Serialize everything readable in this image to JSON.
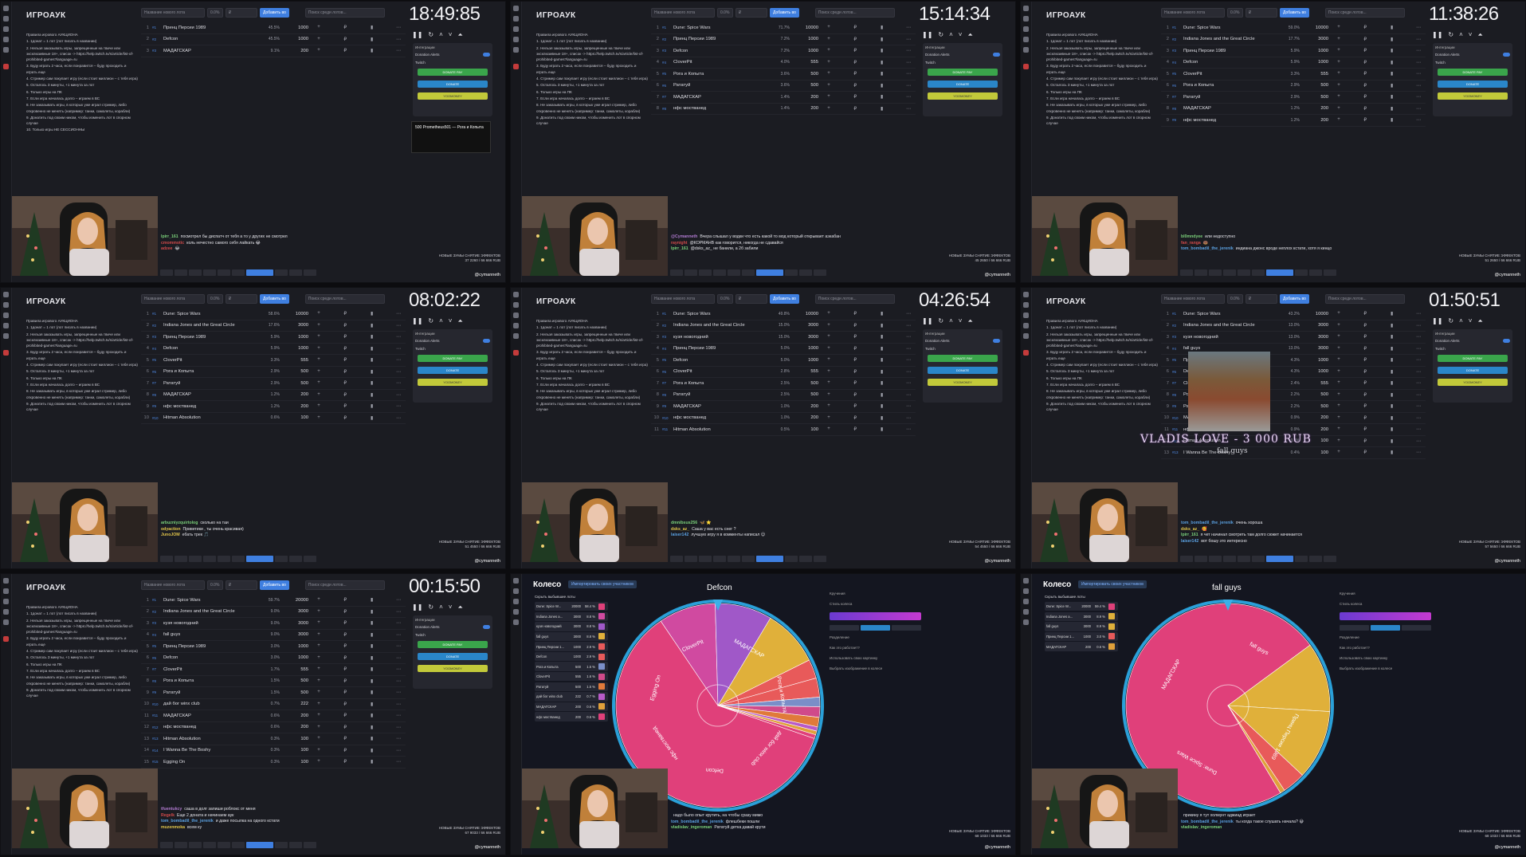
{
  "app_title": "ИГРОАУК",
  "toolbar": {
    "new_lot_placeholder": "Название нового лота",
    "percent": "0.0%",
    "amount_placeholder": "₽",
    "add_label": "Добавить во",
    "search_placeholder": "Поиск среди лотов..."
  },
  "rules": [
    "Правила игрового АУКЦИОНА",
    "1. 1донат = 1 лот (лот писать в названии)",
    "2. Нельзя заказывать игры, запрещенные на твиче или эксклюзивные 18+, список -> https://help.twitch.tv/s/article/list-of-prohibited-games?language=ru",
    "3. Буду играть 2 часа, если понравится – буду проходить и играть еще",
    "4. Стример сам покупает игру (если стоит миллион – с тебя игра)",
    "5. Осталось 3 минуты, +1 минута за лот",
    "6. Только игры на ПК",
    "7. Если игра началась долго – играем в ВС",
    "8. Не заказывать игры, в которых уже играл стример, либо откровенно не менять (например: танки, самолеты, корабли)",
    "9. Донатить под своим ником, чтобы изменить лот в спорном случае"
  ],
  "rules_extra": "10. Только игры НЕ СЕССИОННЫ",
  "integrations": {
    "header": "Интеграции",
    "donation_alerts": "Donation Alerts",
    "twitch": "Twitch",
    "btn_donate_pay": "DONATE PAY",
    "btn_donate": "DONATE",
    "btn_yoomoney": "YOOMONEY"
  },
  "channel": "@cymanneth",
  "info_line": "НОВЫЕ ЗУМЫ СНЯТИЕ ЭФФЕКТОВ",
  "frames": [
    {
      "timer": "18:49:85",
      "lots": [
        {
          "name": "Принц Персии 1989",
          "pct": "45.5%",
          "amount": "1000"
        },
        {
          "name": "Defcon",
          "pct": "45.5%",
          "amount": "1000"
        },
        {
          "name": "МАДАГСКАР",
          "pct": "9.1%",
          "amount": "200"
        }
      ],
      "popup": "500 Prometheus501 — Рога и Копыта",
      "chat": [
        {
          "user": "lpirr_161",
          "color": "#7ad07a",
          "msg": "посмотрел бы диспатч от тебя а то у других не смотрел"
        },
        {
          "user": "cmommotic",
          "color": "#d04a4a",
          "msg": "коль нечестно самого себя лайкать 😂"
        },
        {
          "user": "adzee",
          "color": "#d04a4a",
          "msg": "😂"
        }
      ],
      "total": "37 2260 / 66 666 RUB"
    },
    {
      "timer": "15:14:34",
      "lots": [
        {
          "name": "Dune: Spice Wars",
          "pct": "71.7%",
          "amount": "10000"
        },
        {
          "name": "Принц Персии 1989",
          "pct": "7.2%",
          "amount": "1000"
        },
        {
          "name": "Defcon",
          "pct": "7.2%",
          "amount": "1000"
        },
        {
          "name": "CloverPit",
          "pct": "4.0%",
          "amount": "555"
        },
        {
          "name": "Рога и Копыта",
          "pct": "3.6%",
          "amount": "500"
        },
        {
          "name": "Рататуй",
          "pct": "3.6%",
          "amount": "500"
        },
        {
          "name": "МАДАГСКАР",
          "pct": "1.4%",
          "amount": "200"
        },
        {
          "name": "нфс мостванед",
          "pct": "1.4%",
          "amount": "200"
        }
      ],
      "chat": [
        {
          "user": "@Cymanneth",
          "color": "#b07ad0",
          "msg": "Вчера слышал у водки что есть какой то мод который открывает аэкабан"
        },
        {
          "user": "raynight",
          "color": "#d04a4a",
          "msg": "@КОРМАНВ как говорится, никогда не сдавайся"
        },
        {
          "user": "lpirr_161",
          "color": "#7ad07a",
          "msg": "@dsks_az_ не банили, а 2б забили"
        }
      ],
      "total": "45 2650 / 66 666 RUB"
    },
    {
      "timer": "11:38:26",
      "lots": [
        {
          "name": "Dune: Spice Wars",
          "pct": "59.0%",
          "amount": "10000"
        },
        {
          "name": "Indiana Jones and the Great Circle",
          "pct": "17.7%",
          "amount": "3000"
        },
        {
          "name": "Принц Персии 1989",
          "pct": "5.9%",
          "amount": "1000"
        },
        {
          "name": "Defcon",
          "pct": "5.9%",
          "amount": "1000"
        },
        {
          "name": "CloverPit",
          "pct": "3.3%",
          "amount": "555"
        },
        {
          "name": "Рога и Копыта",
          "pct": "2.9%",
          "amount": "500"
        },
        {
          "name": "Рататуй",
          "pct": "2.9%",
          "amount": "500"
        },
        {
          "name": "МАДАГСКАР",
          "pct": "1.2%",
          "amount": "200"
        },
        {
          "name": "нфс мостванед",
          "pct": "1.2%",
          "amount": "200"
        }
      ],
      "chat": [
        {
          "user": "bl0mndyee",
          "color": "#7ad07a",
          "msg": "или недоступно"
        },
        {
          "user": "fan_ranga",
          "color": "#d04a4a",
          "msg": "🍩"
        },
        {
          "user": "tom_bombadil_the_jerenik",
          "color": "#5aa0e0",
          "msg": "индиана джонс вроде неплох кстати, хотя я кинцо"
        }
      ],
      "total": "51 2650 / 66 666 RUB"
    },
    {
      "timer": "08:02:22",
      "lots": [
        {
          "name": "Dune: Spice Wars",
          "pct": "58.6%",
          "amount": "10000"
        },
        {
          "name": "Indiana Jones and the Great Circle",
          "pct": "17.6%",
          "amount": "3000"
        },
        {
          "name": "Принц Персии 1989",
          "pct": "5.9%",
          "amount": "1000"
        },
        {
          "name": "Defcon",
          "pct": "5.9%",
          "amount": "1000"
        },
        {
          "name": "CloverPit",
          "pct": "3.3%",
          "amount": "555"
        },
        {
          "name": "Рога и Копыта",
          "pct": "2.9%",
          "amount": "500"
        },
        {
          "name": "Рататуй",
          "pct": "2.9%",
          "amount": "500"
        },
        {
          "name": "МАДАГСКАР",
          "pct": "1.2%",
          "amount": "200"
        },
        {
          "name": "нфс мостванед",
          "pct": "1.2%",
          "amount": "200"
        },
        {
          "name": "Hitman Absolution",
          "pct": "0.6%",
          "amount": "100"
        }
      ],
      "chat": [
        {
          "user": "arbuzniyzquirtolog",
          "color": "#7ad07a",
          "msg": "сколько на таи"
        },
        {
          "user": "odyaction",
          "color": "#e0c44a",
          "msg": "Приветики , ты очень красивая)"
        },
        {
          "user": "JunoJOM",
          "color": "#e0c44a",
          "msg": "ебать трек 🎵"
        }
      ],
      "total": "51 4550 / 66 666 RUB"
    },
    {
      "timer": "04:26:54",
      "lots": [
        {
          "name": "Dune: Spice Wars",
          "pct": "49.8%",
          "amount": "10000"
        },
        {
          "name": "Indiana Jones and the Great Circle",
          "pct": "15.0%",
          "amount": "3000"
        },
        {
          "name": "кузя новогодний",
          "pct": "15.0%",
          "amount": "3000"
        },
        {
          "name": "Принц Персии 1989",
          "pct": "5.0%",
          "amount": "1000"
        },
        {
          "name": "Defcon",
          "pct": "5.0%",
          "amount": "1000"
        },
        {
          "name": "CloverPit",
          "pct": "2.8%",
          "amount": "555"
        },
        {
          "name": "Рога и Копыта",
          "pct": "2.5%",
          "amount": "500"
        },
        {
          "name": "Рататуй",
          "pct": "2.5%",
          "amount": "500"
        },
        {
          "name": "МАДАГСКАР",
          "pct": "1.0%",
          "amount": "200"
        },
        {
          "name": "нфс мостванед",
          "pct": "1.0%",
          "amount": "200"
        },
        {
          "name": "Hitman Absolution",
          "pct": "0.5%",
          "amount": "100"
        }
      ],
      "chat": [
        {
          "user": "dmnibsus256",
          "color": "#7ad07a",
          "msg": "🦋 ⭐"
        },
        {
          "user": "dsks_az_",
          "color": "#e0c44a",
          "msg": "Саша у вас есть снег ?"
        },
        {
          "user": "laiser142",
          "color": "#5aa0e0",
          "msg": "лучшую игру я в комменты написал 😊"
        }
      ],
      "total": "54 4550 / 66 666 RUB"
    },
    {
      "timer": "01:50:51",
      "lots": [
        {
          "name": "Dune: Spice Wars",
          "pct": "43.2%",
          "amount": "10000"
        },
        {
          "name": "Indiana Jones and the Great Circle",
          "pct": "13.0%",
          "amount": "3000"
        },
        {
          "name": "кузя новогодний",
          "pct": "13.0%",
          "amount": "3000"
        },
        {
          "name": "fall guys",
          "pct": "13.0%",
          "amount": "3000"
        },
        {
          "name": "Принц Персии 1989",
          "pct": "4.3%",
          "amount": "1000"
        },
        {
          "name": "Defcon",
          "pct": "4.3%",
          "amount": "1000"
        },
        {
          "name": "CloverPit",
          "pct": "2.4%",
          "amount": "555"
        },
        {
          "name": "Рога и Копыта",
          "pct": "2.2%",
          "amount": "500"
        },
        {
          "name": "Рататуй",
          "pct": "2.2%",
          "amount": "500"
        },
        {
          "name": "МАДАГСКАР",
          "pct": "0.9%",
          "amount": "200"
        },
        {
          "name": "нфс мостванед",
          "pct": "0.9%",
          "amount": "200"
        },
        {
          "name": "Hitman Absolution",
          "pct": "0.4%",
          "amount": "100"
        },
        {
          "name": "I Wanna Be The Boshy",
          "pct": "0.4%",
          "amount": "100"
        }
      ],
      "overlay": "VLADIS LOVE - 3 000 RUB",
      "overlay_sub": "fall guys",
      "chat": [
        {
          "user": "tom_bombadil_the_jerenik",
          "color": "#5aa0e0",
          "msg": "очень хороша"
        },
        {
          "user": "dsks_az_",
          "color": "#e0c44a",
          "msg": "🥰"
        },
        {
          "user": "lpirr_161",
          "color": "#7ad07a",
          "msg": "я чет начинал смотреть там долго сюжет начинается"
        },
        {
          "user": "laiser142",
          "color": "#5aa0e0",
          "msg": "вот бошу это интересно"
        }
      ],
      "total": "57 5650 / 66 666 RUB"
    },
    {
      "timer": "00:15:50",
      "lots": [
        {
          "name": "Dune: Spice Wars",
          "pct": "59.7%",
          "amount": "20000"
        },
        {
          "name": "Indiana Jones and the Great Circle",
          "pct": "9.0%",
          "amount": "3000"
        },
        {
          "name": "кузя новогодний",
          "pct": "9.0%",
          "amount": "3000"
        },
        {
          "name": "fall guys",
          "pct": "9.0%",
          "amount": "3000"
        },
        {
          "name": "Принц Персии 1989",
          "pct": "3.0%",
          "amount": "1000"
        },
        {
          "name": "Defcon",
          "pct": "3.0%",
          "amount": "1000"
        },
        {
          "name": "CloverPit",
          "pct": "1.7%",
          "amount": "555"
        },
        {
          "name": "Рога и Копыта",
          "pct": "1.5%",
          "amount": "500"
        },
        {
          "name": "Рататуй",
          "pct": "1.5%",
          "amount": "500"
        },
        {
          "name": "дай бог winx club",
          "pct": "0.7%",
          "amount": "222"
        },
        {
          "name": "МАДАГСКАР",
          "pct": "0.6%",
          "amount": "200"
        },
        {
          "name": "нфс мостванед",
          "pct": "0.6%",
          "amount": "200"
        },
        {
          "name": "Hitman Absolution",
          "pct": "0.3%",
          "amount": "100"
        },
        {
          "name": "I Wanna Be The Boshy",
          "pct": "0.3%",
          "amount": "100"
        },
        {
          "name": "Egging On",
          "pct": "0.3%",
          "amount": "100"
        }
      ],
      "chat": [
        {
          "user": "tfuentukcy",
          "color": "#b07ad0",
          "msg": "саша в долг запиши роблокс от меня"
        },
        {
          "user": "Regelk",
          "color": "#d04a4a",
          "msg": "Еще 2 доната и начинаем аук"
        },
        {
          "user": "tom_bombadil_the_jerenik",
          "color": "#5aa0e0",
          "msg": "и даже посылка на одного кстати"
        },
        {
          "user": "muzenmoka",
          "color": "#e0c44a",
          "msg": "всем ку"
        }
      ],
      "total": "67 9033 / 66 666 RUB"
    }
  ],
  "wheel": {
    "title": "Колесо",
    "import_label": "Импортировать своих участников",
    "hide_label": "Скрыть выбывшие лоты",
    "side_rows": [
      "Кручения",
      "Стиль колеса",
      "Разделение",
      "Как это работает?",
      "Использовать свою картинку",
      "Выбрать изображение в колесе"
    ],
    "frame1": {
      "pointer_label": "Defcon",
      "rows": [
        {
          "name": "Dune: Spice W...",
          "value": "20000",
          "pct": "58.4 %",
          "color": "#e0407a"
        },
        {
          "name": "Indiana Jones a...",
          "value": "3000",
          "pct": "8.8 %",
          "color": "#d04aa0"
        },
        {
          "name": "кузя новогодний",
          "value": "3000",
          "pct": "8.8 %",
          "color": "#a058c8"
        },
        {
          "name": "fall guys",
          "value": "3000",
          "pct": "8.8 %",
          "color": "#e0b03a"
        },
        {
          "name": "Принц Персии 1...",
          "value": "1000",
          "pct": "2.9 %",
          "color": "#e85a5a"
        },
        {
          "name": "Defcon",
          "value": "1000",
          "pct": "2.9 %",
          "color": "#e85a5a"
        },
        {
          "name": "Рога и Копыта",
          "value": "500",
          "pct": "1.5 %",
          "color": "#7a8ec8"
        },
        {
          "name": "CloverPit",
          "value": "555",
          "pct": "1.6 %",
          "color": "#d04a8a"
        },
        {
          "name": "Рататуй",
          "value": "500",
          "pct": "1.5 %",
          "color": "#e07a3a"
        },
        {
          "name": "дай бог winx club",
          "value": "222",
          "pct": "0.7 %",
          "color": "#b85ac8"
        },
        {
          "name": "МАДАГСКАР",
          "value": "200",
          "pct": "0.6 %",
          "color": "#e0a03a"
        },
        {
          "name": "нфс мостванед",
          "value": "200",
          "pct": "0.6 %",
          "color": "#e0407a"
        }
      ],
      "labels": [
        "МАДАГСКАР",
        "Рога и Копыта",
        "дай бог winx club",
        "Defcon",
        "нфс мостванед",
        "Egging On",
        "CloverPit"
      ],
      "chat": [
        {
          "user": "",
          "color": "#fff",
          "msg": "надо было опыт крутить, на чтобы сразу мимо"
        },
        {
          "user": "tom_bombadil_the_jerenik",
          "color": "#5aa0e0",
          "msg": "флешбеки пошли"
        },
        {
          "user": "vladislav_ingeroman",
          "color": "#7ad07a",
          "msg": "Рататуй детка давай крути"
        }
      ],
      "total": "68 1033 / 66 666 RUB"
    },
    "frame2": {
      "pointer_label": "fall guys",
      "rows": [
        {
          "name": "Dune: Spice W...",
          "value": "20000",
          "pct": "59.4 %",
          "color": "#e0407a"
        },
        {
          "name": "Indiana Jones a...",
          "value": "3000",
          "pct": "8.9 %",
          "color": "#e0b03a"
        },
        {
          "name": "fall guys",
          "value": "3000",
          "pct": "8.9 %",
          "color": "#e0b03a"
        },
        {
          "name": "Принц Персии 1...",
          "value": "1000",
          "pct": "3.0 %",
          "color": "#e85a5a"
        },
        {
          "name": "МАДАГСКАР",
          "value": "200",
          "pct": "0.6 %",
          "color": "#e0a03a"
        }
      ],
      "labels": [
        "fall guys",
        "Принц Персии 1989",
        "Dune: Spice Wars",
        "МАДАГСКАР"
      ],
      "chat": [
        {
          "user": "",
          "color": "#fff",
          "msg": "прикину я тут холмунт аджиад играет"
        },
        {
          "user": "tom_bombadil_the_jerenik",
          "color": "#5aa0e0",
          "msg": "ты когда такое слушать начала? 😅"
        },
        {
          "user": "vladislav_ingeroman",
          "color": "#7ad07a",
          "msg": ""
        }
      ],
      "total": "68 1033 / 66 666 RUB"
    }
  }
}
